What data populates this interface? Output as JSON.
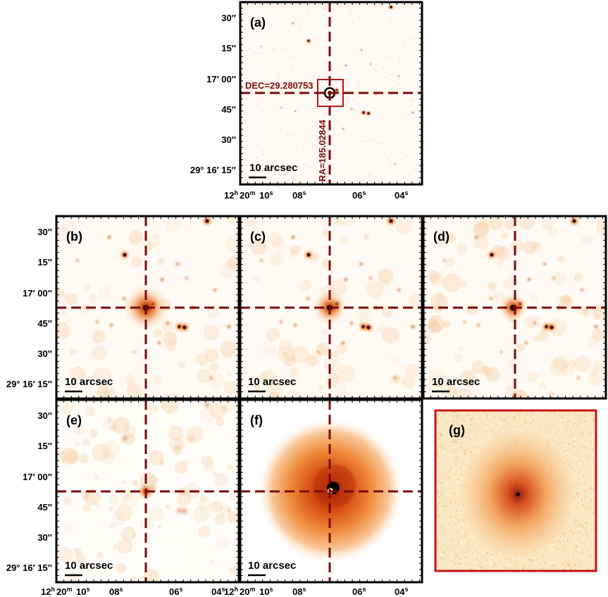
{
  "colors": {
    "cross": "#7a0a0a",
    "frame": "#000000",
    "box_g": "#c01515",
    "halo": "#e8761e",
    "halo_dark": "#b22810"
  },
  "scale_bar": "10 arcsec",
  "dec_ticks": [
    "30″",
    "15″",
    "17′ 00″",
    "45″",
    "30″",
    "29° 16′ 15″"
  ],
  "ra_axis": {
    "h": "12",
    "h_unit": "h",
    "m": "20",
    "m_unit": "m",
    "s10": "10",
    "s_unit": "s",
    "s08": "08",
    "s06": "06",
    "s04": "04"
  },
  "panels": {
    "a": {
      "label": "(a)",
      "dec_text": "DEC=29.280753",
      "ra_text": "RA=185.02844"
    },
    "b": {
      "label": "(b)"
    },
    "c": {
      "label": "(c)"
    },
    "d": {
      "label": "(d)"
    },
    "e": {
      "label": "(e)"
    },
    "f": {
      "label": "(f)"
    },
    "g": {
      "label": "(g)"
    }
  }
}
